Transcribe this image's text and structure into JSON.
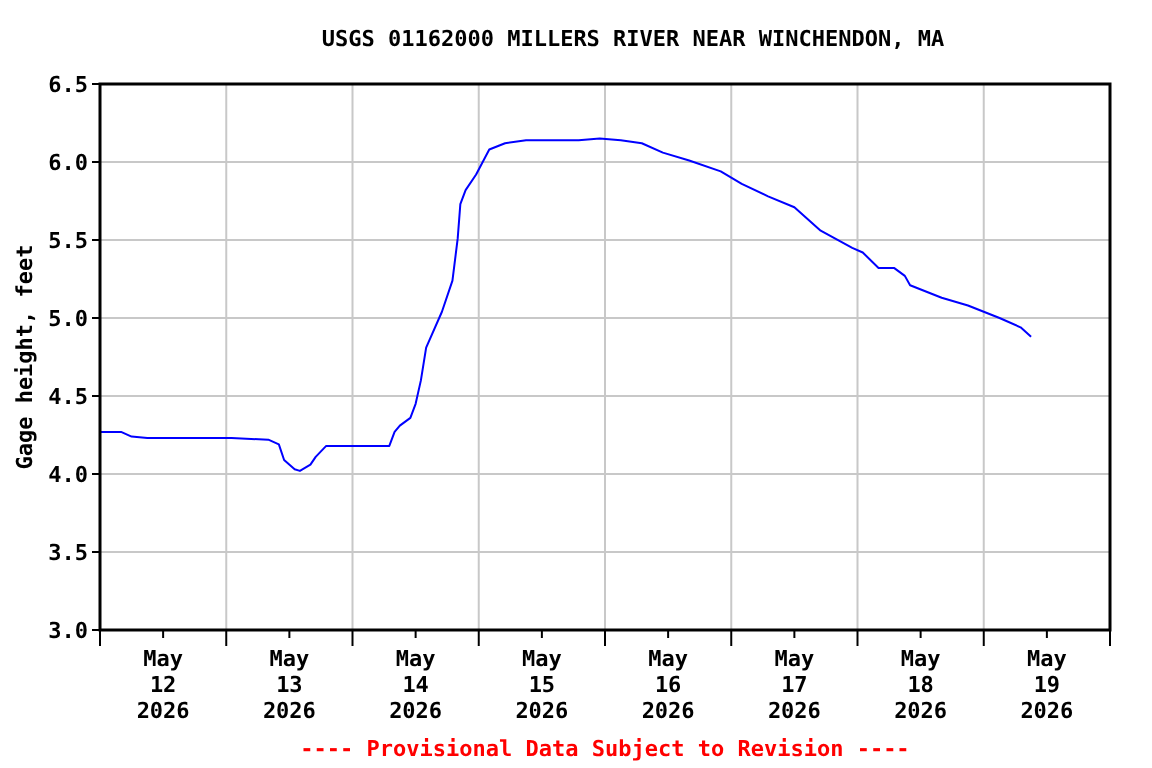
{
  "chart_data": {
    "type": "line",
    "title": "USGS 01162000 MILLERS RIVER NEAR WINCHENDON, MA",
    "ylabel": "Gage height, feet",
    "annotations": [
      "---- Provisional Data Subject to Revision ----"
    ],
    "xlim": [
      "2026-05-12T00:00",
      "2026-05-20T00:00"
    ],
    "xticks": [
      {
        "value": "2026-05-12T00:00",
        "label": null
      },
      {
        "value": "2026-05-12T12:00",
        "label": "May\n12\n2026"
      },
      {
        "value": "2026-05-13T00:00",
        "label": null
      },
      {
        "value": "2026-05-13T12:00",
        "label": "May\n13\n2026"
      },
      {
        "value": "2026-05-14T00:00",
        "label": null
      },
      {
        "value": "2026-05-14T12:00",
        "label": "May\n14\n2026"
      },
      {
        "value": "2026-05-15T00:00",
        "label": null
      },
      {
        "value": "2026-05-15T12:00",
        "label": "May\n15\n2026"
      },
      {
        "value": "2026-05-16T00:00",
        "label": null
      },
      {
        "value": "2026-05-16T12:00",
        "label": "May\n16\n2026"
      },
      {
        "value": "2026-05-17T00:00",
        "label": null
      },
      {
        "value": "2026-05-17T12:00",
        "label": "May\n17\n2026"
      },
      {
        "value": "2026-05-18T00:00",
        "label": null
      },
      {
        "value": "2026-05-18T12:00",
        "label": "May\n18\n2026"
      },
      {
        "value": "2026-05-19T00:00",
        "label": null
      },
      {
        "value": "2026-05-19T12:00",
        "label": "May\n19\n2026"
      },
      {
        "value": "2026-05-20T00:00",
        "label": null
      }
    ],
    "ylim": [
      3.0,
      6.5
    ],
    "yticks": [
      {
        "value": 3,
        "label": "3.0"
      },
      {
        "value": 3.5,
        "label": "3.5"
      },
      {
        "value": 4,
        "label": "4.0"
      },
      {
        "value": 4.5,
        "label": "4.5"
      },
      {
        "value": 5,
        "label": "5.0"
      },
      {
        "value": 5.5,
        "label": "5.5"
      },
      {
        "value": 6,
        "label": "6.0"
      },
      {
        "value": 6.5,
        "label": "6.5"
      }
    ],
    "grid": true,
    "marker": "none",
    "line_style": "solid",
    "series": [
      {
        "color": "#0000ff",
        "x": [
          "2026-05-12T00:00",
          "2026-05-12T04:00",
          "2026-05-12T06:00",
          "2026-05-12T09:00",
          "2026-05-12T19:00",
          "2026-05-13T01:00",
          "2026-05-13T08:00",
          "2026-05-13T10:00",
          "2026-05-13T11:00",
          "2026-05-13T13:00",
          "2026-05-13T14:00",
          "2026-05-13T16:00",
          "2026-05-13T17:00",
          "2026-05-13T19:00",
          "2026-05-14T07:00",
          "2026-05-14T08:00",
          "2026-05-14T09:00",
          "2026-05-14T11:00",
          "2026-05-14T12:00",
          "2026-05-14T13:00",
          "2026-05-14T14:00",
          "2026-05-14T17:00",
          "2026-05-14T19:00",
          "2026-05-14T20:00",
          "2026-05-14T20:30",
          "2026-05-14T21:30",
          "2026-05-14T23:30",
          "2026-05-15T02:00",
          "2026-05-15T05:00",
          "2026-05-15T09:00",
          "2026-05-15T19:00",
          "2026-05-15T23:00",
          "2026-05-16T03:00",
          "2026-05-16T07:00",
          "2026-05-16T11:00",
          "2026-05-16T16:00",
          "2026-05-16T22:00",
          "2026-05-17T02:00",
          "2026-05-17T07:00",
          "2026-05-17T12:00",
          "2026-05-17T17:00",
          "2026-05-17T23:00",
          "2026-05-18T01:00",
          "2026-05-18T04:00",
          "2026-05-18T07:00",
          "2026-05-18T09:00",
          "2026-05-18T10:00",
          "2026-05-18T16:00",
          "2026-05-18T21:00",
          "2026-05-19T03:00",
          "2026-05-19T07:00",
          "2026-05-19T09:00"
        ],
        "values": [
          4.27,
          4.27,
          4.24,
          4.23,
          4.23,
          4.23,
          4.22,
          4.19,
          4.09,
          4.03,
          4.02,
          4.06,
          4.11,
          4.18,
          4.18,
          4.27,
          4.31,
          4.36,
          4.45,
          4.6,
          4.81,
          5.04,
          5.24,
          5.51,
          5.73,
          5.82,
          5.92,
          6.08,
          6.12,
          6.14,
          6.14,
          6.15,
          6.14,
          6.12,
          6.06,
          6.01,
          5.94,
          5.86,
          5.78,
          5.71,
          5.56,
          5.45,
          5.42,
          5.32,
          5.32,
          5.27,
          5.21,
          5.13,
          5.08,
          5.0,
          4.94,
          4.88
        ]
      }
    ]
  }
}
